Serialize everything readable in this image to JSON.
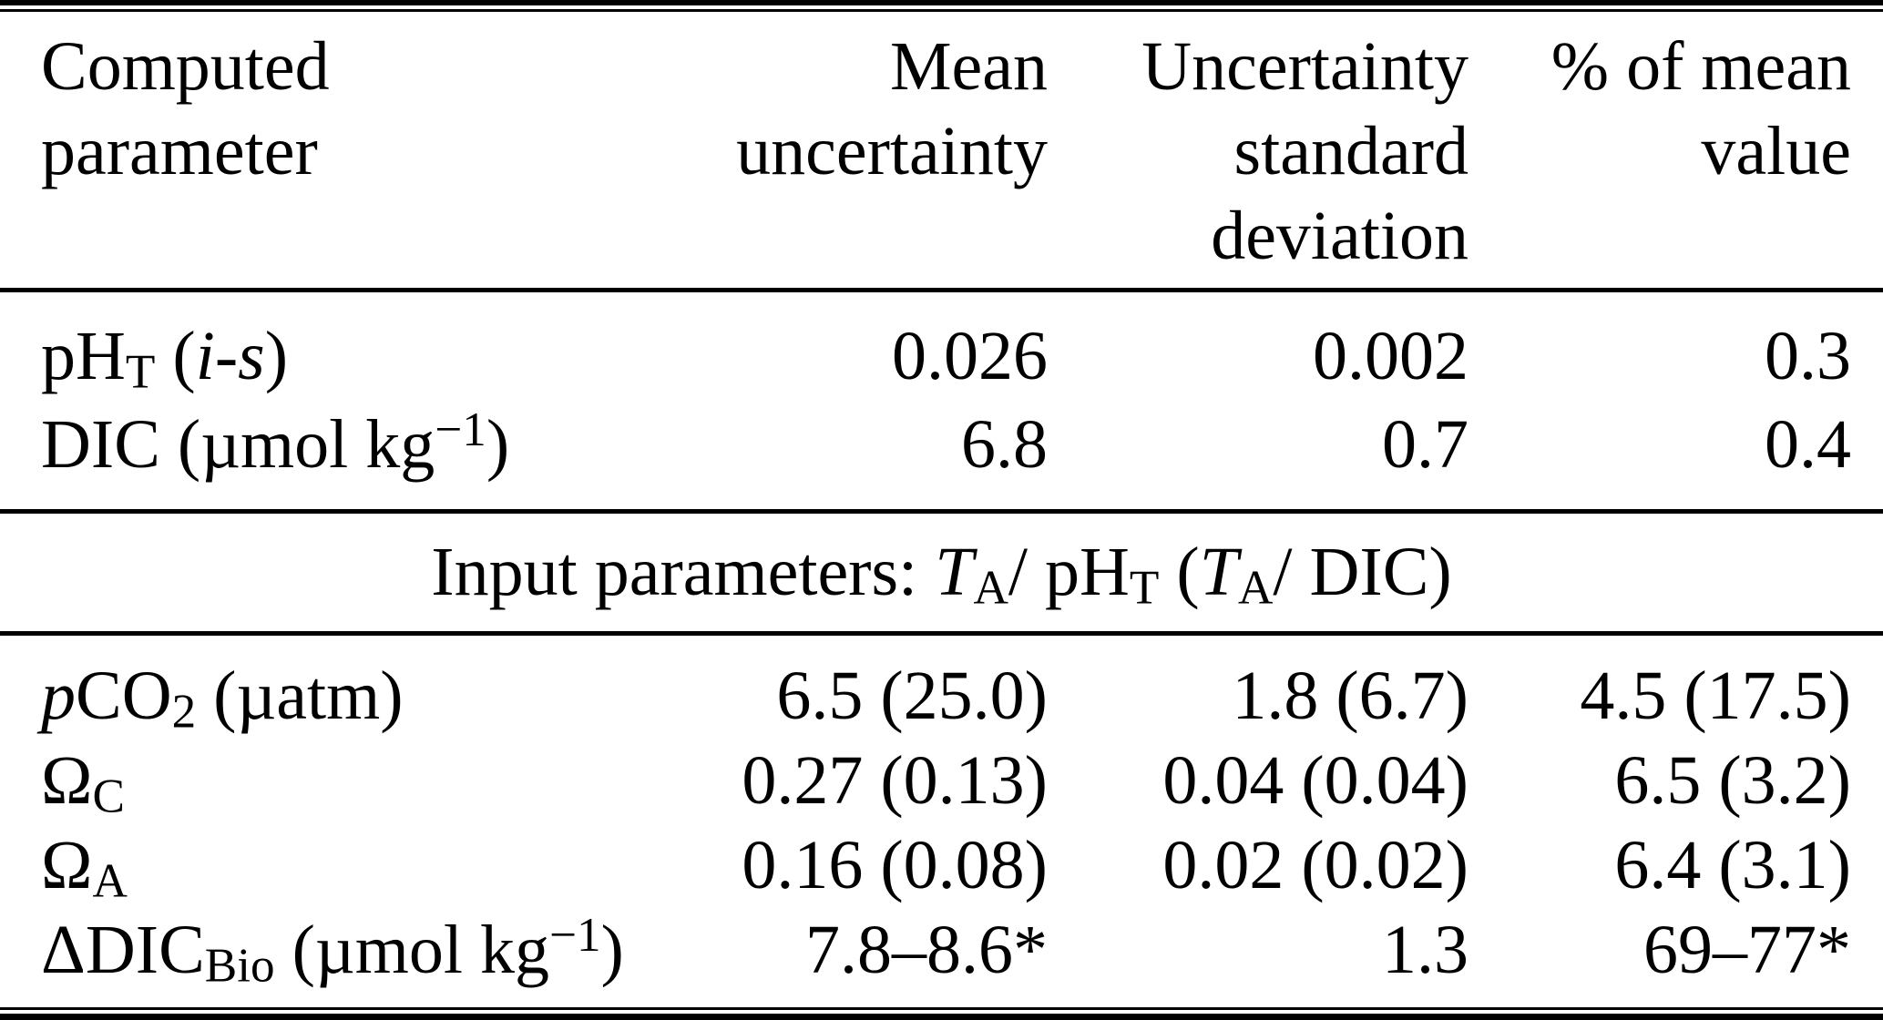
{
  "colors": {
    "ink": "#000000",
    "background": "#ffffff"
  },
  "table": {
    "columns": [
      {
        "label_html": "Computed<br>parameter",
        "align": "left"
      },
      {
        "label_html": "Mean<br>uncertainty",
        "align": "right"
      },
      {
        "label_html": "Uncertainty<br>standard<br>deviation",
        "align": "right"
      },
      {
        "label_html": "% of mean<br>value",
        "align": "right"
      }
    ],
    "section1": {
      "rows": [
        {
          "param_html": "pH<sub>T</sub> (<i>i</i>-<i>s</i>)",
          "param_text": "pHT (i-s)",
          "mean": "0.026",
          "sd": "0.002",
          "pct": "0.3"
        },
        {
          "param_html": "DIC (µmol kg<sup>−1</sup>)",
          "param_text": "DIC (µmol kg−1)",
          "mean": "6.8",
          "sd": "0.7",
          "pct": "0.4"
        }
      ]
    },
    "section_header_html": "Input parameters: <i>T</i><sub>A</sub>/ pH<sub>T</sub> (<i>T</i><sub>A</sub>/ DIC)",
    "section_header_text": "Input parameters: TA/ pHT (TA/ DIC)",
    "section2": {
      "rows": [
        {
          "param_html": "<i>p</i>CO<sub>2</sub> (µatm)",
          "param_text": "pCO2 (µatm)",
          "mean": "6.5 (25.0)",
          "sd": "1.8 (6.7)",
          "pct": "4.5 (17.5)"
        },
        {
          "param_html": "Ω<sub>C</sub>",
          "param_text": "ΩC",
          "mean": "0.27 (0.13)",
          "sd": "0.04 (0.04)",
          "pct": "6.5 (3.2)"
        },
        {
          "param_html": "Ω<sub>A</sub>",
          "param_text": "ΩA",
          "mean": "0.16 (0.08)",
          "sd": "0.02 (0.02)",
          "pct": "6.4 (3.1)"
        },
        {
          "param_html": "ΔDIC<sub>Bio</sub> (µmol kg<sup>−1</sup>)",
          "param_text": "ΔDICBio (µmol kg−1)",
          "mean": "7.8–8.6*",
          "sd": "1.3",
          "pct": "69–77*"
        }
      ]
    }
  }
}
